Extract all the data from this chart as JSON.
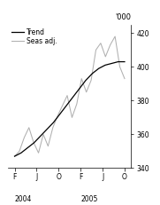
{
  "ylabel": "'000",
  "ylim": [
    340,
    425
  ],
  "yticks": [
    340,
    360,
    380,
    400,
    420
  ],
  "xtick_labels": [
    "F",
    "J",
    "O",
    "F",
    "J",
    "O"
  ],
  "year_labels": [
    [
      "2004",
      0.0
    ],
    [
      "2005",
      3.0
    ]
  ],
  "trend_y": [
    347,
    349,
    352,
    355,
    359,
    363,
    367,
    372,
    377,
    382,
    387,
    392,
    396,
    399,
    401,
    402,
    403,
    403
  ],
  "seas_y": [
    347,
    350,
    358,
    364,
    355,
    349,
    360,
    353,
    364,
    371,
    377,
    383,
    370,
    378,
    393,
    385,
    392,
    410,
    414,
    406,
    413,
    418,
    400,
    393
  ],
  "trend_color": "#000000",
  "seas_color": "#b0b0b0",
  "background_color": "#ffffff",
  "legend_trend": "Trend",
  "legend_seas": "Seas adj.",
  "figsize": [
    1.81,
    2.31
  ],
  "dpi": 100
}
